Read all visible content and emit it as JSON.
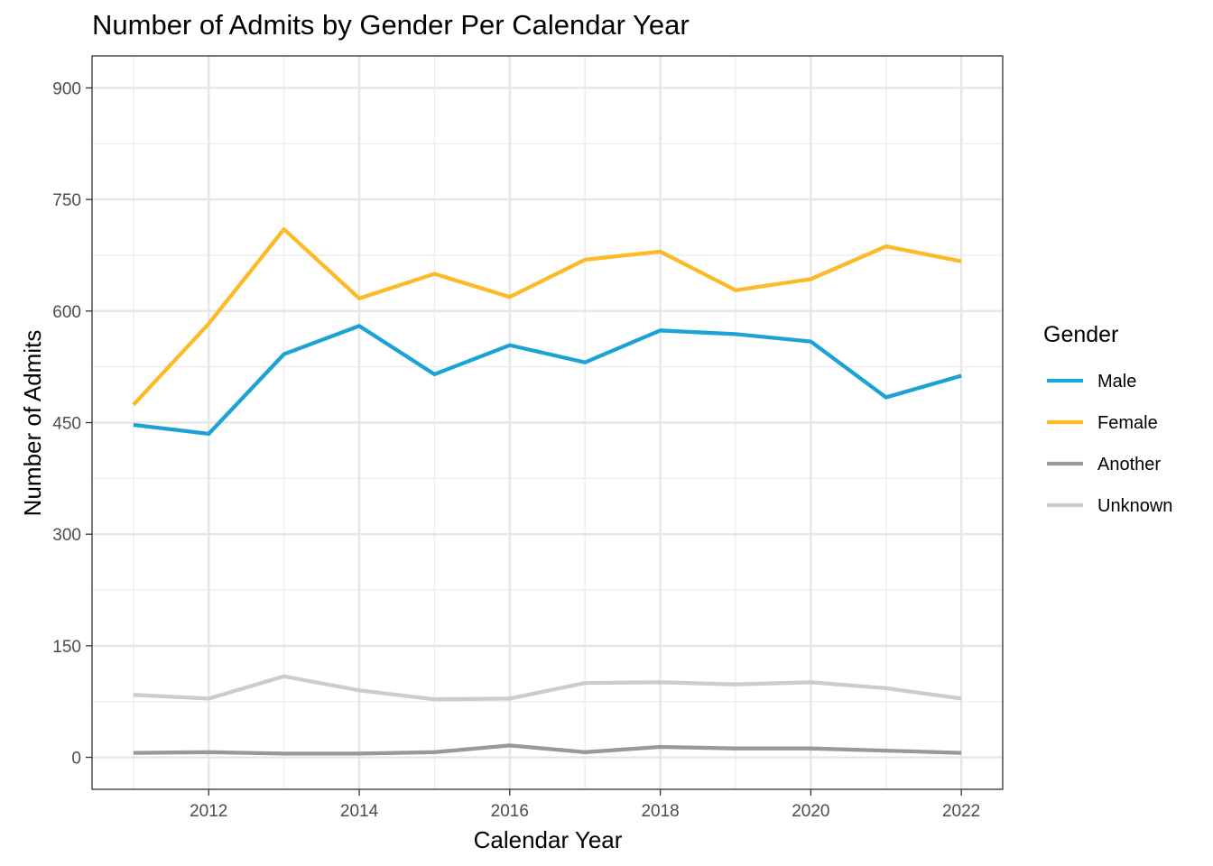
{
  "chart_data": {
    "type": "line",
    "title": "Number of Admits by Gender Per Calendar Year",
    "xlabel": "Calendar Year",
    "ylabel": "Number of Admits",
    "x": [
      2011,
      2012,
      2013,
      2014,
      2015,
      2016,
      2017,
      2018,
      2019,
      2020,
      2021,
      2022
    ],
    "xlim": [
      2010.45,
      2022.55
    ],
    "ylim": [
      -43,
      943
    ],
    "xticks": [
      "2012",
      "2014",
      "2016",
      "2018",
      "2020",
      "2022"
    ],
    "yticks": [
      "0",
      "150",
      "300",
      "450",
      "600",
      "750",
      "900"
    ],
    "grid": true,
    "legend": {
      "title": "Gender",
      "position": "right"
    },
    "series": [
      {
        "name": "Male",
        "color": "#1ba3d6",
        "values": [
          447,
          435,
          542,
          580,
          515,
          554,
          531,
          574,
          569,
          559,
          484,
          513
        ]
      },
      {
        "name": "Female",
        "color": "#fbba26",
        "values": [
          474,
          583,
          710,
          617,
          650,
          619,
          669,
          680,
          628,
          643,
          687,
          667
        ]
      },
      {
        "name": "Another",
        "color": "#999999",
        "values": [
          6,
          7,
          5,
          5,
          7,
          16,
          7,
          14,
          12,
          12,
          9,
          6
        ]
      },
      {
        "name": "Unknown",
        "color": "#cccccc",
        "values": [
          84,
          79,
          109,
          90,
          78,
          79,
          100,
          101,
          98,
          101,
          93,
          79
        ]
      }
    ]
  }
}
